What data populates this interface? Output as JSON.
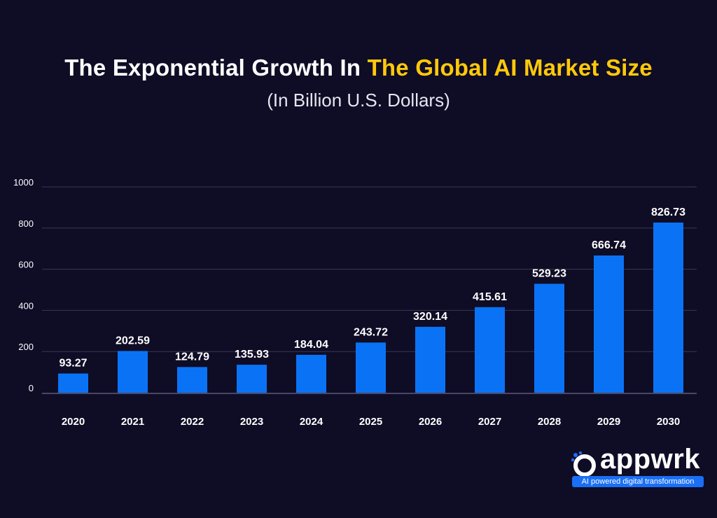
{
  "title": {
    "part1": "The Exponential Growth In ",
    "part2": "The Global AI Market Size"
  },
  "subtitle": "(In Billion U.S. Dollars)",
  "colors": {
    "background": "#0f0c26",
    "bar": "#0a73f5",
    "title_highlight": "#ffc90a",
    "gridline": "#3a3752"
  },
  "chart_data": {
    "type": "bar",
    "title": "The Exponential Growth In The Global AI Market Size",
    "subtitle": "(In Billion U.S. Dollars)",
    "xlabel": "",
    "ylabel": "",
    "categories": [
      "2020",
      "2021",
      "2022",
      "2023",
      "2024",
      "2025",
      "2026",
      "2027",
      "2028",
      "2029",
      "2030"
    ],
    "values": [
      93.27,
      202.59,
      124.79,
      135.93,
      184.04,
      243.72,
      320.14,
      415.61,
      529.23,
      666.74,
      826.73
    ],
    "data_labels": [
      "93.27",
      "202.59",
      "124.79",
      "135.93",
      "184.04",
      "243.72",
      "320.14",
      "415.61",
      "529.23",
      "666.74",
      "826.73"
    ],
    "yticks": [
      0,
      200,
      400,
      600,
      800,
      1000
    ],
    "ytick_labels": [
      "0",
      "200",
      "400",
      "600",
      "800",
      "1000"
    ],
    "ylim": [
      0,
      1000
    ],
    "grid": true,
    "legend": "none"
  },
  "logo": {
    "word": "appwrk",
    "tagline": "AI powered digital transformation"
  }
}
